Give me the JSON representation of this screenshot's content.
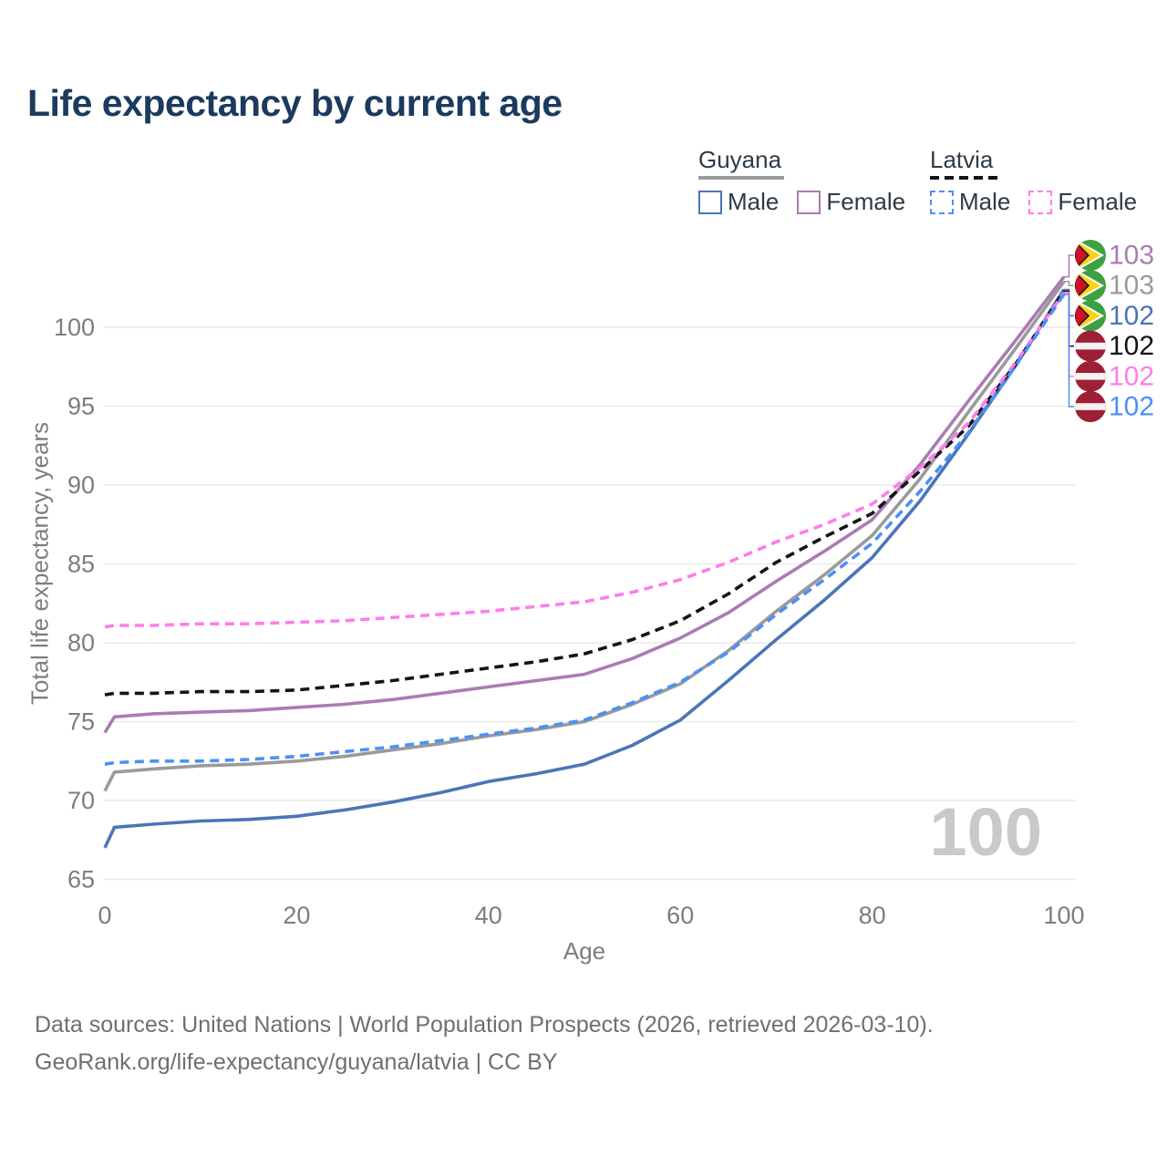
{
  "title": "Life expectancy by current age",
  "legend": {
    "groups": [
      {
        "country": "Guyana",
        "swatch_style": "solid",
        "underline_color": "#9a9a9a",
        "items": [
          {
            "label": "Male",
            "color": "#4a76b8"
          },
          {
            "label": "Female",
            "color": "#ab7bb4"
          }
        ]
      },
      {
        "country": "Latvia",
        "swatch_style": "dashed",
        "underline_color": "#141414",
        "items": [
          {
            "label": "Male",
            "color": "#4b90f7"
          },
          {
            "label": "Female",
            "color": "#ff7de9"
          }
        ]
      }
    ]
  },
  "chart_data": {
    "type": "line",
    "title": "Life expectancy by current age",
    "xlabel": "Age",
    "ylabel": "Total life expectancy, years",
    "x_ticks": [
      0,
      20,
      40,
      60,
      80,
      100
    ],
    "y_ticks": [
      100,
      95,
      90,
      85,
      80,
      75,
      70,
      65
    ],
    "xlim": [
      0,
      100
    ],
    "ylim": [
      65,
      103.5
    ],
    "grid": "horizontal",
    "ages": [
      0,
      1,
      5,
      10,
      15,
      20,
      25,
      30,
      35,
      40,
      45,
      50,
      55,
      60,
      65,
      70,
      75,
      80,
      85,
      90,
      95,
      100
    ],
    "series": [
      {
        "name": "Guyana Male",
        "country": "Guyana",
        "sex": "Male",
        "color": "#4a76b8",
        "dash": false,
        "values": [
          67.0,
          68.3,
          68.5,
          68.7,
          68.8,
          69.0,
          69.4,
          69.9,
          70.5,
          71.2,
          71.7,
          72.3,
          73.5,
          75.1,
          77.6,
          80.2,
          82.7,
          85.4,
          89.0,
          93.2,
          97.6,
          102.4
        ]
      },
      {
        "name": "Guyana Both sexes",
        "country": "Guyana",
        "sex": "Both",
        "color": "#9a9a9a",
        "dash": false,
        "values": [
          70.6,
          71.8,
          72.0,
          72.2,
          72.3,
          72.5,
          72.8,
          73.2,
          73.6,
          74.1,
          74.5,
          75.0,
          76.1,
          77.4,
          79.5,
          82.0,
          84.3,
          86.8,
          90.4,
          94.6,
          98.7,
          102.9
        ]
      },
      {
        "name": "Guyana Female",
        "country": "Guyana",
        "sex": "Female",
        "color": "#ab7bb4",
        "dash": false,
        "values": [
          74.3,
          75.3,
          75.5,
          75.6,
          75.7,
          75.9,
          76.1,
          76.4,
          76.8,
          77.2,
          77.6,
          78.0,
          79.0,
          80.3,
          81.9,
          83.9,
          85.8,
          87.8,
          91.3,
          95.3,
          99.2,
          103.2
        ]
      },
      {
        "name": "Latvia Both sexes",
        "country": "Latvia",
        "sex": "Both",
        "color": "#141414",
        "dash": true,
        "values": [
          76.7,
          76.8,
          76.8,
          76.9,
          76.9,
          77.0,
          77.3,
          77.6,
          78.0,
          78.4,
          78.8,
          79.3,
          80.2,
          81.4,
          83.1,
          85.1,
          86.7,
          88.2,
          90.9,
          93.7,
          97.7,
          102.3
        ]
      },
      {
        "name": "Latvia Female",
        "country": "Latvia",
        "sex": "Female",
        "color": "#ff7de9",
        "dash": true,
        "values": [
          81.0,
          81.1,
          81.1,
          81.2,
          81.2,
          81.3,
          81.4,
          81.6,
          81.8,
          82.0,
          82.3,
          82.6,
          83.2,
          84.0,
          85.1,
          86.4,
          87.5,
          88.8,
          91.1,
          93.9,
          97.8,
          102.2
        ]
      },
      {
        "name": "Latvia Male",
        "country": "Latvia",
        "sex": "Male",
        "color": "#4b90f7",
        "dash": true,
        "values": [
          72.3,
          72.4,
          72.5,
          72.5,
          72.6,
          72.8,
          73.1,
          73.4,
          73.8,
          74.2,
          74.6,
          75.1,
          76.2,
          77.5,
          79.4,
          81.8,
          84.0,
          86.3,
          89.6,
          93.3,
          97.6,
          102.1
        ]
      }
    ],
    "end_labels": [
      {
        "value": "103",
        "flag": "guyana",
        "color": "#ab7bb4",
        "series": "Guyana Female"
      },
      {
        "value": "103",
        "flag": "guyana",
        "color": "#9a9a9a",
        "series": "Guyana Both sexes"
      },
      {
        "value": "102",
        "flag": "guyana",
        "color": "#4a76b8",
        "series": "Guyana Male"
      },
      {
        "value": "102",
        "flag": "latvia",
        "color": "#141414",
        "series": "Latvia Both sexes"
      },
      {
        "value": "102",
        "flag": "latvia",
        "color": "#ff7de9",
        "series": "Latvia Female"
      },
      {
        "value": "102",
        "flag": "latvia",
        "color": "#4b90f7",
        "series": "Latvia Male"
      }
    ]
  },
  "watermark": "100",
  "footer": {
    "line1": "Data sources: United Nations | World Population Prospects (2026, retrieved 2026-03-10).",
    "line2": "GeoRank.org/life-expectancy/guyana/latvia | CC BY"
  },
  "colors": {
    "title": "#1c3a5e",
    "axis_text": "#7d7d7d",
    "grid": "#e9e9e9",
    "watermark": "#c9c9c9",
    "footer": "#6f6f6f",
    "flag_guyana_green": "#3da144",
    "flag_guyana_yellow": "#fcd116",
    "flag_guyana_red": "#ce1126",
    "flag_latvia_red": "#9e2035"
  }
}
